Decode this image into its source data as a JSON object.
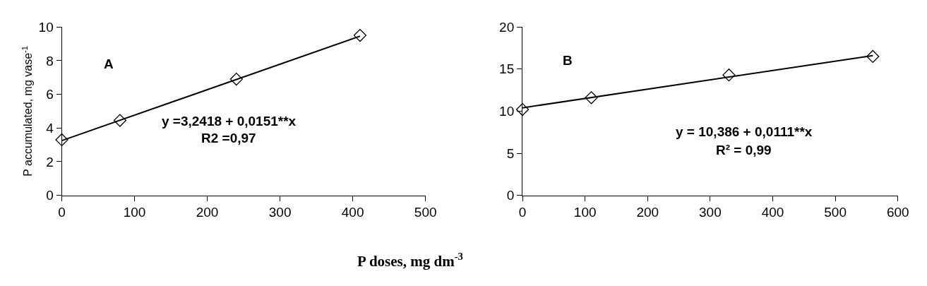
{
  "chart_data": [
    {
      "type": "scatter",
      "xlabel": "P doses, mg dm$^{-3}$",
      "ylabel": "P accumulated, mg vase$^{-1}$",
      "xlim": [
        0,
        500
      ],
      "xticks": [
        0,
        100,
        200,
        300,
        400,
        500
      ],
      "ylim": [
        0,
        10
      ],
      "yticks": [
        0,
        2,
        4,
        6,
        8,
        10
      ],
      "series": [
        {
          "color": "#000000",
          "marker": "diamond",
          "x": [
            0,
            80,
            240,
            410
          ],
          "values": [
            3.3,
            4.45,
            6.9,
            9.5
          ]
        },
        {
          "type": "line",
          "marker": "none",
          "color": "#000000",
          "x": [
            0,
            410
          ],
          "values": [
            3.25,
            9.45
          ],
          "line_style": "solid"
        }
      ],
      "annotations": [
        "A",
        "y =3,2418 + 0,0151**x",
        "R2 =0,97"
      ]
    },
    {
      "type": "scatter",
      "xlim": [
        0,
        600
      ],
      "xticks": [
        0,
        100,
        200,
        300,
        400,
        500,
        600
      ],
      "ylim": [
        0,
        20
      ],
      "yticks": [
        0,
        5,
        10,
        15,
        20
      ],
      "series": [
        {
          "color": "#000000",
          "marker": "diamond",
          "x": [
            0,
            110,
            330,
            560
          ],
          "values": [
            10.2,
            11.6,
            14.3,
            16.5
          ]
        },
        {
          "type": "line",
          "marker": "none",
          "color": "#000000",
          "x": [
            0,
            560
          ],
          "values": [
            10.4,
            16.6
          ],
          "line_style": "solid"
        }
      ],
      "annotations": [
        "B",
        "y = 10,386 + 0,0111**x",
        "R² = 0,99"
      ]
    }
  ]
}
